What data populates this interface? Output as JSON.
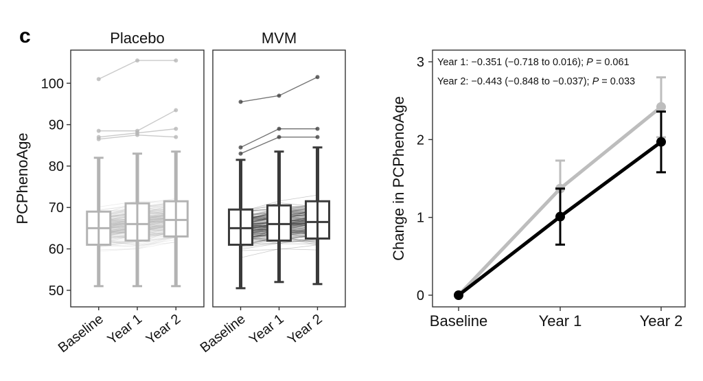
{
  "panel_label": "c",
  "chart_data": [
    {
      "type": "box",
      "panel": "placebo",
      "title": "Placebo",
      "ylabel": "PCPhenoAge",
      "ylim": [
        46,
        108
      ],
      "yticks": [
        50,
        60,
        70,
        80,
        90,
        100
      ],
      "categories": [
        "Baseline",
        "Year 1",
        "Year 2"
      ],
      "color": "#b3b3b3",
      "boxes": [
        {
          "category": "Baseline",
          "whisker_low": 51,
          "q1": 61,
          "median": 65,
          "q3": 69,
          "whisker_high": 82
        },
        {
          "category": "Year 1",
          "whisker_low": 51,
          "q1": 62,
          "median": 66,
          "q3": 71,
          "whisker_high": 83
        },
        {
          "category": "Year 2",
          "whisker_low": 51,
          "q1": 63,
          "median": 67,
          "q3": 71.5,
          "whisker_high": 83.5
        }
      ],
      "outlier_trajectories": [
        [
          101,
          105.5,
          105.5
        ],
        [
          88.5,
          88.5,
          93.5
        ],
        [
          87,
          88,
          89
        ],
        [
          86.5,
          87.5,
          87
        ]
      ]
    },
    {
      "type": "box",
      "panel": "mvm",
      "title": "MVM",
      "ylim": [
        46,
        108
      ],
      "yticks": [
        50,
        60,
        70,
        80,
        90,
        100
      ],
      "categories": [
        "Baseline",
        "Year 1",
        "Year 2"
      ],
      "color": "#3a3a3a",
      "boxes": [
        {
          "category": "Baseline",
          "whisker_low": 50.5,
          "q1": 61,
          "median": 65,
          "q3": 69.5,
          "whisker_high": 81.5
        },
        {
          "category": "Year 1",
          "whisker_low": 52,
          "q1": 62,
          "median": 66,
          "q3": 70.5,
          "whisker_high": 83.5
        },
        {
          "category": "Year 2",
          "whisker_low": 51.5,
          "q1": 62.5,
          "median": 66.5,
          "q3": 71.5,
          "whisker_high": 84.5
        }
      ],
      "outlier_trajectories": [
        [
          95.5,
          97,
          101.5
        ],
        [
          84.5,
          89,
          89
        ],
        [
          83,
          87,
          87
        ]
      ]
    },
    {
      "type": "line",
      "panel": "change",
      "ylabel": "Change in PCPhenoAge",
      "categories": [
        "Baseline",
        "Year 1",
        "Year 2"
      ],
      "ylim": [
        -0.15,
        3.15
      ],
      "yticks": [
        0,
        1,
        2,
        3
      ],
      "series": [
        {
          "color": "#bdbdbd",
          "values": [
            0,
            1.37,
            2.42
          ],
          "error_low": [
            0,
            1.0,
            2.03
          ],
          "error_high": [
            0,
            1.73,
            2.8
          ]
        },
        {
          "color": "#000000",
          "values": [
            0,
            1.01,
            1.97
          ],
          "error_low": [
            0,
            0.65,
            1.58
          ],
          "error_high": [
            0,
            1.37,
            2.36
          ]
        }
      ],
      "annotations": [
        {
          "prefix": "Year 1: −0.351 (−0.718 to 0.016); ",
          "p_label": "P",
          "p_value": " = 0.061"
        },
        {
          "prefix": "Year 2: −0.443 (−0.848 to −0.037); ",
          "p_label": "P",
          "p_value": " = 0.033"
        }
      ]
    }
  ]
}
